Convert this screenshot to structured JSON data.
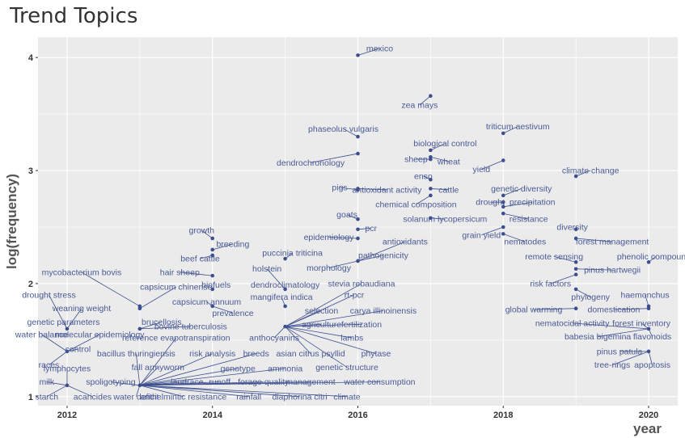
{
  "chart_data": {
    "type": "scatter",
    "title": "Trend Topics",
    "xlabel": "year",
    "ylabel": "log(frequency)",
    "xlim": [
      2011.6,
      2020.4
    ],
    "ylim": [
      0.92,
      4.18
    ],
    "x_ticks": [
      2012,
      2014,
      2016,
      2018,
      2020
    ],
    "y_ticks": [
      1,
      2,
      3,
      4
    ],
    "grid": true,
    "colors": {
      "panel": "#ebebeb",
      "grid": "#ffffff",
      "point": "#3c4e8e",
      "label": "#4a5a96"
    },
    "points": [
      {
        "term": "mexico",
        "x": 2016,
        "y": 4.02,
        "lx": 2016.3,
        "ly": 4.08
      },
      {
        "term": "zea mays",
        "x": 2017,
        "y": 3.66,
        "lx": 2016.85,
        "ly": 3.58
      },
      {
        "term": "triticum aestivum",
        "x": 2018,
        "y": 3.33,
        "lx": 2018.2,
        "ly": 3.39
      },
      {
        "term": "phaseolus vulgaris",
        "x": 2016,
        "y": 3.3,
        "lx": 2015.8,
        "ly": 3.37
      },
      {
        "term": "biological control",
        "x": 2017,
        "y": 3.18,
        "lx": 2017.2,
        "ly": 3.24
      },
      {
        "term": "sheep",
        "x": 2017,
        "y": 3.1,
        "lx": 2016.8,
        "ly": 3.1
      },
      {
        "term": "wheat",
        "x": 2017,
        "y": 3.12,
        "lx": 2017.25,
        "ly": 3.08
      },
      {
        "term": "dendrochronology",
        "x": 2016,
        "y": 3.15,
        "lx": 2015.35,
        "ly": 3.07
      },
      {
        "term": "yield",
        "x": 2018,
        "y": 3.09,
        "lx": 2017.7,
        "ly": 3.01
      },
      {
        "term": "climate change",
        "x": 2019,
        "y": 2.95,
        "lx": 2019.2,
        "ly": 3.0
      },
      {
        "term": "enso",
        "x": 2017,
        "y": 2.92,
        "lx": 2016.9,
        "ly": 2.95
      },
      {
        "term": "antioxidant activity",
        "x": 2016,
        "y": 2.84,
        "lx": 2016.4,
        "ly": 2.83
      },
      {
        "term": "pigs",
        "x": 2016,
        "y": 2.83,
        "lx": 2015.75,
        "ly": 2.85
      },
      {
        "term": "cattle",
        "x": 2017,
        "y": 2.84,
        "lx": 2017.25,
        "ly": 2.83
      },
      {
        "term": "genetic diversity",
        "x": 2018,
        "y": 2.78,
        "lx": 2018.25,
        "ly": 2.84
      },
      {
        "term": "chemical composition",
        "x": 2017,
        "y": 2.78,
        "lx": 2016.8,
        "ly": 2.7
      },
      {
        "term": "drought",
        "x": 2018,
        "y": 2.72,
        "lx": 2017.82,
        "ly": 2.72
      },
      {
        "term": "precipitation",
        "x": 2018,
        "y": 2.68,
        "lx": 2018.4,
        "ly": 2.72
      },
      {
        "term": "goats",
        "x": 2016,
        "y": 2.57,
        "lx": 2015.85,
        "ly": 2.61
      },
      {
        "term": "solanum lycopersicum",
        "x": 2017,
        "y": 2.58,
        "lx": 2017.2,
        "ly": 2.57
      },
      {
        "term": "resistance",
        "x": 2018,
        "y": 2.62,
        "lx": 2018.35,
        "ly": 2.57
      },
      {
        "term": "pcr",
        "x": 2016,
        "y": 2.48,
        "lx": 2016.18,
        "ly": 2.49
      },
      {
        "term": "diversity",
        "x": 2019,
        "y": 2.48,
        "lx": 2018.95,
        "ly": 2.5
      },
      {
        "term": "grain yield",
        "x": 2018,
        "y": 2.5,
        "lx": 2017.7,
        "ly": 2.43
      },
      {
        "term": "growth",
        "x": 2014,
        "y": 2.4,
        "lx": 2013.85,
        "ly": 2.47
      },
      {
        "term": "epidemiology",
        "x": 2016,
        "y": 2.4,
        "lx": 2015.6,
        "ly": 2.41
      },
      {
        "term": "antioxidants",
        "x": 2016,
        "y": 2.2,
        "lx": 2016.65,
        "ly": 2.37
      },
      {
        "term": "nematodes",
        "x": 2018,
        "y": 2.44,
        "lx": 2018.3,
        "ly": 2.37
      },
      {
        "term": "forest management",
        "x": 2019,
        "y": 2.4,
        "lx": 2019.5,
        "ly": 2.37
      },
      {
        "term": "breeding",
        "x": 2014,
        "y": 2.3,
        "lx": 2014.28,
        "ly": 2.35
      },
      {
        "term": "puccinia triticina",
        "x": 2015,
        "y": 2.22,
        "lx": 2015.1,
        "ly": 2.27
      },
      {
        "term": "beef cattle",
        "x": 2014,
        "y": 2.25,
        "lx": 2013.83,
        "ly": 2.22
      },
      {
        "term": "remote sensing",
        "x": 2019,
        "y": 2.19,
        "lx": 2018.7,
        "ly": 2.24
      },
      {
        "term": "phenolic compounds",
        "x": 2020,
        "y": 2.19,
        "lx": 2020.1,
        "ly": 2.24
      },
      {
        "term": "pathogenicity",
        "x": 2016,
        "y": 2.2,
        "lx": 2016.35,
        "ly": 2.25
      },
      {
        "term": "morphology",
        "x": 2016,
        "y": 2.2,
        "lx": 2015.6,
        "ly": 2.14
      },
      {
        "term": "holstein",
        "x": 2015,
        "y": 1.95,
        "lx": 2014.75,
        "ly": 2.13
      },
      {
        "term": "mycobacterium bovis",
        "x": 2013,
        "y": 1.8,
        "lx": 2012.2,
        "ly": 2.1
      },
      {
        "term": "hair sheep",
        "x": 2014,
        "y": 2.07,
        "lx": 2013.55,
        "ly": 2.1
      },
      {
        "term": "pinus hartwegii",
        "x": 2019,
        "y": 2.13,
        "lx": 2019.5,
        "ly": 2.12
      },
      {
        "term": "dendroclimatology",
        "x": 2015,
        "y": 1.95,
        "lx": 2015.0,
        "ly": 1.99
      },
      {
        "term": "biofuels",
        "x": 2014,
        "y": 1.95,
        "lx": 2014.05,
        "ly": 1.99
      },
      {
        "term": "capsicum chinense",
        "x": 2013,
        "y": 1.78,
        "lx": 2013.5,
        "ly": 1.97
      },
      {
        "term": "stevia rebaudiana",
        "x": 2015,
        "y": 1.62,
        "lx": 2016.05,
        "ly": 2.0
      },
      {
        "term": "risk factors",
        "x": 2019,
        "y": 2.08,
        "lx": 2018.65,
        "ly": 2.0
      },
      {
        "term": "drought stress",
        "x": 2012,
        "y": 1.6,
        "lx": 2011.75,
        "ly": 1.9
      },
      {
        "term": "rt-pcr",
        "x": 2015,
        "y": 1.62,
        "lx": 2015.95,
        "ly": 1.9
      },
      {
        "term": "mangifera indica",
        "x": 2015,
        "y": 1.8,
        "lx": 2014.95,
        "ly": 1.88
      },
      {
        "term": "capsicum annuum",
        "x": 2014,
        "y": 1.8,
        "lx": 2013.92,
        "ly": 1.84
      },
      {
        "term": "phylogeny",
        "x": 2019,
        "y": 1.95,
        "lx": 2019.2,
        "ly": 1.88
      },
      {
        "term": "haemonchus",
        "x": 2020,
        "y": 1.8,
        "lx": 2019.95,
        "ly": 1.9
      },
      {
        "term": "weaning weight",
        "x": 2012,
        "y": 1.6,
        "lx": 2012.2,
        "ly": 1.78
      },
      {
        "term": "prevalence",
        "x": 2014,
        "y": 1.8,
        "lx": 2014.28,
        "ly": 1.74
      },
      {
        "term": "selection",
        "x": 2015,
        "y": 1.62,
        "lx": 2015.5,
        "ly": 1.76
      },
      {
        "term": "carya illinoinensis",
        "x": 2015,
        "y": 1.62,
        "lx": 2016.35,
        "ly": 1.76
      },
      {
        "term": "global warming",
        "x": 2019,
        "y": 1.78,
        "lx": 2018.42,
        "ly": 1.77
      },
      {
        "term": "domestication",
        "x": 2020,
        "y": 1.78,
        "lx": 2019.52,
        "ly": 1.77
      },
      {
        "term": "genetic parameters",
        "x": 2012,
        "y": 1.6,
        "lx": 2011.95,
        "ly": 1.66
      },
      {
        "term": "brucellosis",
        "x": 2013,
        "y": 1.6,
        "lx": 2013.3,
        "ly": 1.66
      },
      {
        "term": "bovine tuberculosis",
        "x": 2013,
        "y": 1.6,
        "lx": 2013.7,
        "ly": 1.62
      },
      {
        "term": "agriculture",
        "x": 2015,
        "y": 1.62,
        "lx": 2015.5,
        "ly": 1.64
      },
      {
        "term": "fertilization",
        "x": 2015,
        "y": 1.62,
        "lx": 2016.05,
        "ly": 1.64
      },
      {
        "term": "nematocidal activity",
        "x": 2020,
        "y": 1.6,
        "lx": 2018.95,
        "ly": 1.65
      },
      {
        "term": "forest inventory",
        "x": 2020,
        "y": 1.6,
        "lx": 2019.9,
        "ly": 1.65
      },
      {
        "term": "water balance",
        "x": 2012,
        "y": 1.4,
        "lx": 2011.65,
        "ly": 1.55
      },
      {
        "term": "molecular epidemiology",
        "x": 2012,
        "y": 1.4,
        "lx": 2012.45,
        "ly": 1.55
      },
      {
        "term": "reference evapotranspiration",
        "x": 2013,
        "y": 1.1,
        "lx": 2013.5,
        "ly": 1.52
      },
      {
        "term": "anthocyanins",
        "x": 2015,
        "y": 1.62,
        "lx": 2014.85,
        "ly": 1.52
      },
      {
        "term": "lambs",
        "x": 2015,
        "y": 1.62,
        "lx": 2015.92,
        "ly": 1.52
      },
      {
        "term": "babesia bigemina",
        "x": 2020,
        "y": 1.6,
        "lx": 2019.3,
        "ly": 1.53
      },
      {
        "term": "flavonoids",
        "x": 2020,
        "y": 1.6,
        "lx": 2020.05,
        "ly": 1.53
      },
      {
        "term": "control",
        "x": 2012,
        "y": 1.4,
        "lx": 2012.15,
        "ly": 1.42
      },
      {
        "term": "bacillus thuringiensis",
        "x": 2013,
        "y": 1.1,
        "lx": 2012.95,
        "ly": 1.38
      },
      {
        "term": "risk analysis",
        "x": 2013,
        "y": 1.1,
        "lx": 2014.0,
        "ly": 1.38
      },
      {
        "term": "breeds",
        "x": 2013,
        "y": 1.1,
        "lx": 2014.6,
        "ly": 1.38
      },
      {
        "term": "asian citrus psyllid",
        "x": 2015,
        "y": 1.62,
        "lx": 2015.35,
        "ly": 1.38
      },
      {
        "term": "phytase",
        "x": 2015,
        "y": 1.62,
        "lx": 2016.25,
        "ly": 1.38
      },
      {
        "term": "pinus patula",
        "x": 2020,
        "y": 1.4,
        "lx": 2019.6,
        "ly": 1.4
      },
      {
        "term": "races",
        "x": 2012,
        "y": 1.4,
        "lx": 2011.75,
        "ly": 1.28
      },
      {
        "term": "lymphocytes",
        "x": 2012,
        "y": 1.1,
        "lx": 2012.0,
        "ly": 1.25
      },
      {
        "term": "fall armyworm",
        "x": 2013,
        "y": 1.1,
        "lx": 2013.25,
        "ly": 1.26
      },
      {
        "term": "genotype",
        "x": 2013,
        "y": 1.1,
        "lx": 2014.35,
        "ly": 1.25
      },
      {
        "term": "ammonia",
        "x": 2013,
        "y": 1.1,
        "lx": 2015.0,
        "ly": 1.25
      },
      {
        "term": "genetic structure",
        "x": 2015,
        "y": 1.62,
        "lx": 2015.85,
        "ly": 1.26
      },
      {
        "term": "tree-rings",
        "x": 2020,
        "y": 1.4,
        "lx": 2019.5,
        "ly": 1.28
      },
      {
        "term": "apoptosis",
        "x": 2020,
        "y": 1.4,
        "lx": 2020.05,
        "ly": 1.28
      },
      {
        "term": "milk",
        "x": 2012,
        "y": 1.1,
        "lx": 2011.72,
        "ly": 1.13
      },
      {
        "term": "spoligotyping",
        "x": 2013,
        "y": 1.1,
        "lx": 2012.6,
        "ly": 1.13
      },
      {
        "term": "landrace",
        "x": 2013,
        "y": 1.1,
        "lx": 2013.65,
        "ly": 1.13
      },
      {
        "term": "runoff",
        "x": 2013,
        "y": 1.1,
        "lx": 2014.1,
        "ly": 1.13
      },
      {
        "term": "forage quality",
        "x": 2013,
        "y": 1.1,
        "lx": 2014.7,
        "ly": 1.13
      },
      {
        "term": "management",
        "x": 2013,
        "y": 1.1,
        "lx": 2015.35,
        "ly": 1.13
      },
      {
        "term": "water consumption",
        "x": 2013,
        "y": 1.1,
        "lx": 2016.3,
        "ly": 1.13
      },
      {
        "term": "starch",
        "x": 2012,
        "y": 1.1,
        "lx": 2011.72,
        "ly": 1.0
      },
      {
        "term": "acaricides",
        "x": 2012,
        "y": 1.1,
        "lx": 2012.35,
        "ly": 1.0
      },
      {
        "term": "water deficit",
        "x": 2013,
        "y": 1.1,
        "lx": 2012.95,
        "ly": 1.0
      },
      {
        "term": "anthelmintic resistance",
        "x": 2013,
        "y": 1.1,
        "lx": 2013.6,
        "ly": 1.0
      },
      {
        "term": "rainfall",
        "x": 2013,
        "y": 1.1,
        "lx": 2014.5,
        "ly": 1.0
      },
      {
        "term": "diaphorina citri",
        "x": 2013,
        "y": 1.1,
        "lx": 2015.2,
        "ly": 1.0
      },
      {
        "term": "climate",
        "x": 2013,
        "y": 1.1,
        "lx": 2015.85,
        "ly": 1.0
      }
    ]
  }
}
